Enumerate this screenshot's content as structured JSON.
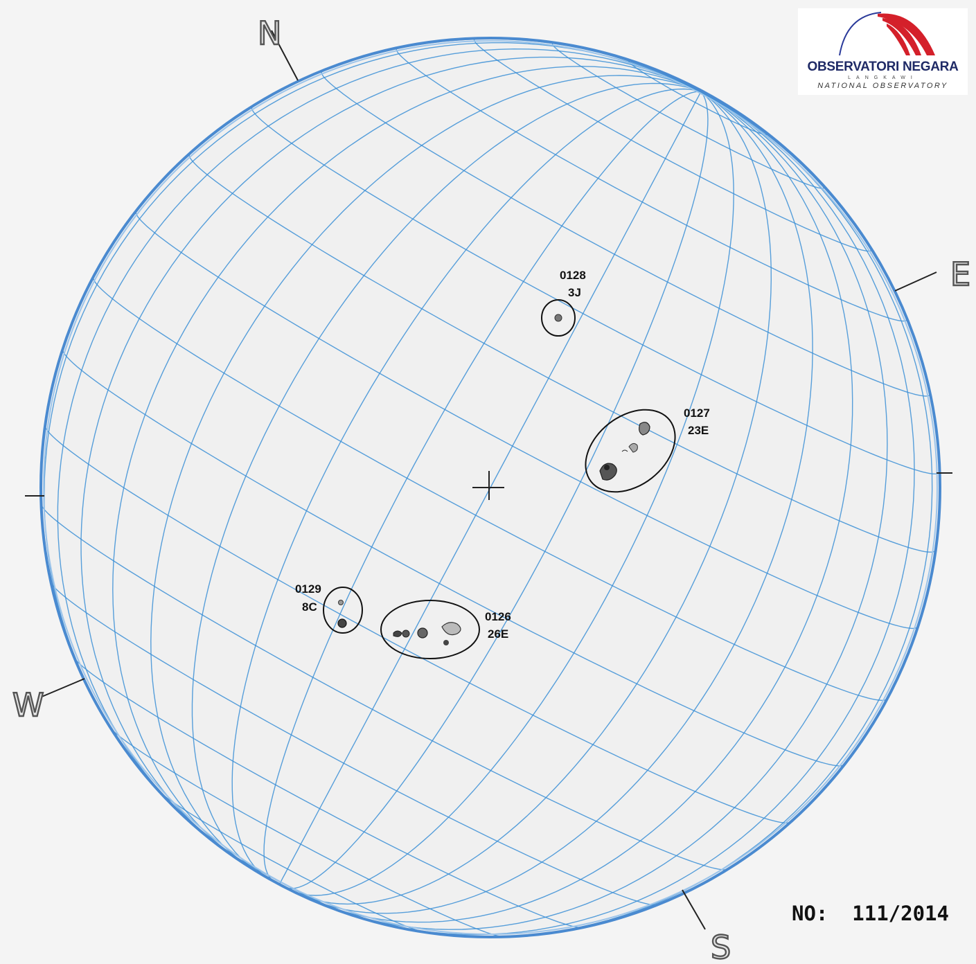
{
  "logo": {
    "title": "OBSERVATORI NEGARA",
    "subtitle": "LANGKAWI",
    "tagline": "NATIONAL OBSERVATORY"
  },
  "report_number": "NO:  111/2014",
  "compass": {
    "north": "N",
    "south": "S",
    "east": "E",
    "west": "W"
  },
  "regions": [
    {
      "id": "0128",
      "class": "3J"
    },
    {
      "id": "0127",
      "class": "23E"
    },
    {
      "id": "0129",
      "class": "8C"
    },
    {
      "id": "0126",
      "class": "26E"
    }
  ],
  "colors": {
    "grid": "#3b8fd6",
    "limb": "#4a8ad0",
    "background": "#f4f4f4",
    "logo_red": "#d4202a",
    "logo_blue": "#1f2a66"
  }
}
